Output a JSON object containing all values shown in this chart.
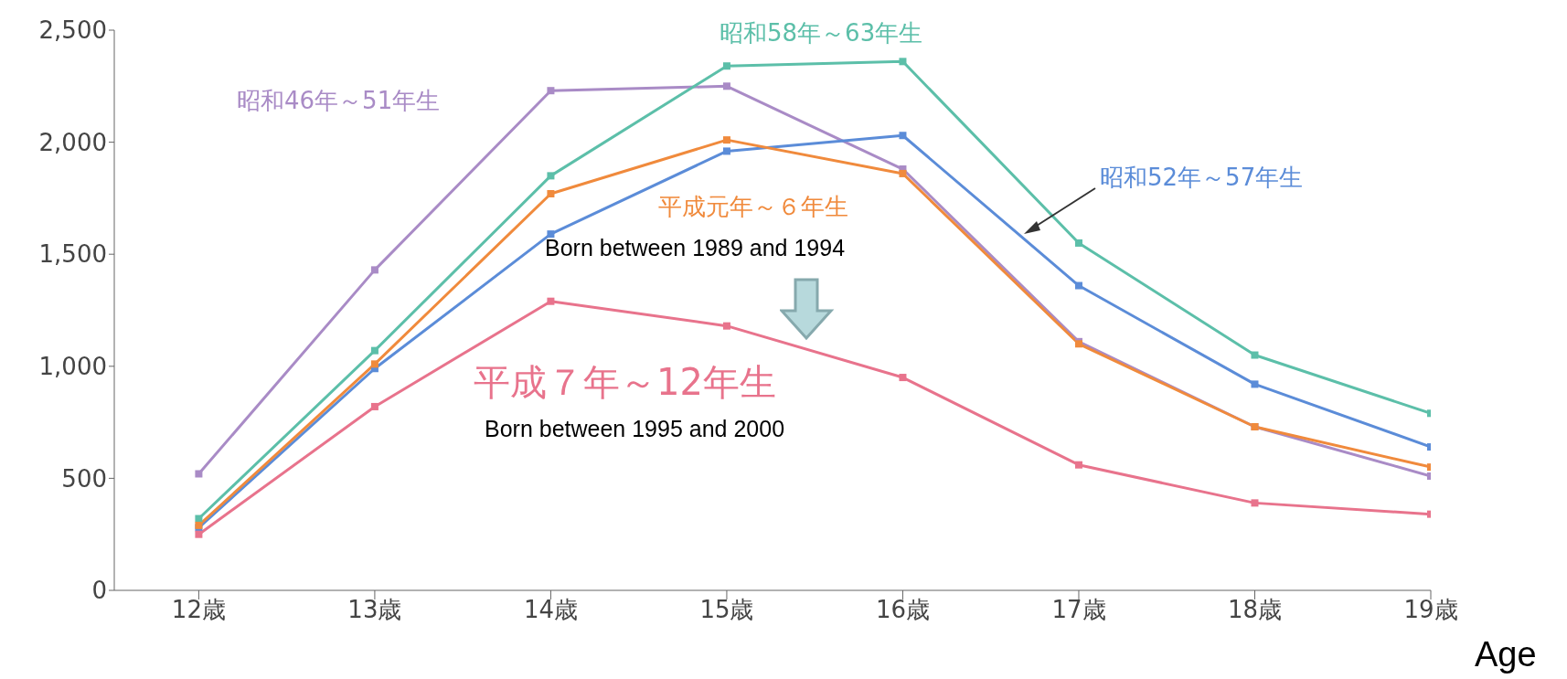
{
  "chart_data": {
    "type": "line",
    "xlabel": "Age",
    "categories": [
      "12歳",
      "13歳",
      "14歳",
      "15歳",
      "16歳",
      "17歳",
      "18歳",
      "19歳"
    ],
    "ylim": [
      0,
      2500
    ],
    "yticks": [
      {
        "value": 0,
        "label": "0"
      },
      {
        "value": 500,
        "label": "500"
      },
      {
        "value": 1000,
        "label": "1,000"
      },
      {
        "value": 1500,
        "label": "1,500"
      },
      {
        "value": 2000,
        "label": "2,000"
      },
      {
        "value": 2500,
        "label": "2,500"
      }
    ],
    "marker": "square",
    "line_style": "solid",
    "series": [
      {
        "name": "昭和46年～51年生",
        "color": "#a98bc6",
        "values": [
          520,
          1430,
          2230,
          2250,
          1880,
          1110,
          730,
          510
        ]
      },
      {
        "name": "昭和58年～63年生",
        "color": "#5cbfa9",
        "values": [
          320,
          1070,
          1850,
          2340,
          2360,
          1550,
          1050,
          790
        ]
      },
      {
        "name": "昭和52年～57年生",
        "color": "#5b8cd8",
        "values": [
          280,
          990,
          1590,
          1960,
          2030,
          1360,
          920,
          640
        ]
      },
      {
        "name": "平成元年～６年生",
        "color": "#f08a3c",
        "values": [
          290,
          1010,
          1770,
          2010,
          1860,
          1100,
          730,
          550
        ]
      },
      {
        "name": "平成７年～12年生",
        "color": "#e8738c",
        "values": [
          250,
          820,
          1290,
          1180,
          950,
          560,
          390,
          340
        ]
      }
    ],
    "annotations": [
      "Born between 1989 and 1994",
      "Born between 1995 and 2000"
    ]
  }
}
